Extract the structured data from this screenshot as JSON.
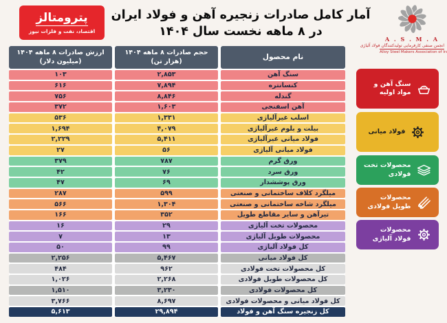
{
  "colors": {
    "page_bg": "#f7f3ef",
    "header_bg": "#4e5a6a",
    "table_backing": "#ffffff",
    "row_text": "#232a40",
    "grand_text": "#ffffff"
  },
  "row_colors": {
    "raw": "#ef8486",
    "mid": "#f6cf67",
    "flat": "#7ed0a2",
    "long": "#f2a46b",
    "alloy": "#bd9fd9",
    "total_dark": "#b6b7b6",
    "total_light": "#dbdbdb",
    "grand": "#223a5e"
  },
  "brand": {
    "name": "پترومتالز",
    "tagline": "اقتصاد، نفت و فلزات نیوز",
    "color": "#e5262b"
  },
  "title": {
    "line1": "آمار کامل صادرات زنجیره آهن و فولاد ایران",
    "line2": "در ۸ ماهه نخست سال ۱۴۰۴"
  },
  "asma": {
    "acronym": "A . S . M . A",
    "name_fa": "انجمن صنفی کارفرمایی تولیدکنندگان فولاد آلیاژی",
    "name_en": "Alloy Steel Makers Association of Iran",
    "flower_color": "#a3a3a3",
    "center_color": "#e02b27"
  },
  "table": {
    "headers": {
      "name": "نام محصول",
      "volume_line1": "حجم صادرات ۸ ماهه ۱۴۰۴",
      "volume_line2": "(هزار تن)",
      "value_line1": "ارزش صادرات ۸ ماهه ۱۴۰۴",
      "value_line2": "(میلیون دلار)"
    }
  },
  "categories": [
    {
      "label": "سنگ آهن و مواد اولیه",
      "color": "#cf2027",
      "text_color": "#ffffff",
      "icon": "ore-pile-icon",
      "row_span": 4
    },
    {
      "label": "فولاد میانی",
      "color": "#e9b529",
      "text_color": "#1d1d1d",
      "icon": "gear-icon",
      "row_span": 4
    },
    {
      "label": "محصولات تخت فولادی",
      "color": "#2ca15c",
      "text_color": "#ffffff",
      "icon": "sheets-stack-icon",
      "row_span": 3
    },
    {
      "label": "محصولات طویل فولادی",
      "color": "#d87027",
      "text_color": "#ffffff",
      "icon": "steel-rods-icon",
      "row_span": 3
    },
    {
      "label": "محصولات فولاد آلیاژی",
      "color": "#7c3fa0",
      "text_color": "#ffffff",
      "icon": "alloy-gear-icon",
      "row_span": 3
    }
  ],
  "chart_data": {
    "type": "table",
    "title": "آمار کامل صادرات زنجیره آهن و فولاد ایران در ۸ ماهه نخست سال ۱۴۰۴",
    "columns": [
      "نام محصول",
      "حجم صادرات ۸ ماهه ۱۴۰۴ (هزار تن)",
      "ارزش صادرات ۸ ماهه ۱۴۰۴ (میلیون دلار)"
    ],
    "rows": [
      {
        "name": "سنگ آهن",
        "volume": 2853,
        "volume_fa": "۲,۸۵۳",
        "value": 103,
        "value_fa": "۱۰۳",
        "group": "سنگ آهن و مواد اولیه",
        "style": "raw"
      },
      {
        "name": "کنسانتره",
        "volume": 7894,
        "volume_fa": "۷,۸۹۴",
        "value": 616,
        "value_fa": "۶۱۶",
        "group": "سنگ آهن و مواد اولیه",
        "style": "raw"
      },
      {
        "name": "گندله",
        "volume": 8846,
        "volume_fa": "۸,۸۴۶",
        "value": 756,
        "value_fa": "۷۵۶",
        "group": "سنگ آهن و مواد اولیه",
        "style": "raw"
      },
      {
        "name": "آهن اسفنجی",
        "volume": 1603,
        "volume_fa": "۱,۶۰۳",
        "value": 372,
        "value_fa": "۳۷۲",
        "group": "سنگ آهن و مواد اولیه",
        "style": "raw"
      },
      {
        "name": "اسلب غیرآلیاژی",
        "volume": 1331,
        "volume_fa": "۱,۳۳۱",
        "value": 536,
        "value_fa": "۵۳۶",
        "group": "فولاد میانی",
        "style": "mid"
      },
      {
        "name": "بیلت و بلوم غیرآلیاژی",
        "volume": 4079,
        "volume_fa": "۴,۰۷۹",
        "value": 1694,
        "value_fa": "۱,۶۹۴",
        "group": "فولاد میانی",
        "style": "mid"
      },
      {
        "name": "فولاد میانی غیرآلیاژی",
        "volume": 5411,
        "volume_fa": "۵,۴۱۱",
        "value": 2229,
        "value_fa": "۲,۲۲۹",
        "group": "فولاد میانی",
        "style": "mid"
      },
      {
        "name": "فولاد میانی آلیاژی",
        "volume": 56,
        "volume_fa": "۵۶",
        "value": 27,
        "value_fa": "۲۷",
        "group": "فولاد میانی",
        "style": "mid"
      },
      {
        "name": "ورق گرم",
        "volume": 787,
        "volume_fa": "۷۸۷",
        "value": 379,
        "value_fa": "۳۷۹",
        "group": "محصولات تخت فولادی",
        "style": "flat"
      },
      {
        "name": "ورق سرد",
        "volume": 76,
        "volume_fa": "۷۶",
        "value": 42,
        "value_fa": "۴۲",
        "group": "محصولات تخت فولادی",
        "style": "flat"
      },
      {
        "name": "ورق پوششدار",
        "volume": 69,
        "volume_fa": "۶۹",
        "value": 47,
        "value_fa": "۴۷",
        "group": "محصولات تخت فولادی",
        "style": "flat"
      },
      {
        "name": "میلگرد کلاف ساختمانی و صنعتی",
        "volume": 599,
        "volume_fa": "۵۹۹",
        "value": 287,
        "value_fa": "۲۸۷",
        "group": "محصولات طویل فولادی",
        "style": "long"
      },
      {
        "name": "میلگرد شاخه ساختمانی و صنعتی",
        "volume": 1304,
        "volume_fa": "۱,۳۰۴",
        "value": 566,
        "value_fa": "۵۶۶",
        "group": "محصولات طویل فولادی",
        "style": "long"
      },
      {
        "name": "تیرآهن و سایر مقاطع طویل",
        "volume": 352,
        "volume_fa": "۳۵۲",
        "value": 166,
        "value_fa": "۱۶۶",
        "group": "محصولات طویل فولادی",
        "style": "long"
      },
      {
        "name": "محصولات تخت آلیاژی",
        "volume": 29,
        "volume_fa": "۲۹",
        "value": 16,
        "value_fa": "۱۶",
        "group": "محصولات فولاد آلیاژی",
        "style": "alloy"
      },
      {
        "name": "محصولات طویل آلیاژی",
        "volume": 13,
        "volume_fa": "۱۳",
        "value": 7,
        "value_fa": "۷",
        "group": "محصولات فولاد آلیاژی",
        "style": "alloy"
      },
      {
        "name": "کل فولاد آلیاژی",
        "volume": 99,
        "volume_fa": "۹۹",
        "value": 50,
        "value_fa": "۵۰",
        "group": "محصولات فولاد آلیاژی",
        "style": "alloy"
      },
      {
        "name": "کل فولاد میانی",
        "volume": 5467,
        "volume_fa": "۵,۴۶۷",
        "value": 2256,
        "value_fa": "۲,۲۵۶",
        "group": "totals",
        "style": "total_dark"
      },
      {
        "name": "کل محصولات تخت فولادی",
        "volume": 962,
        "volume_fa": "۹۶۲",
        "value": 484,
        "value_fa": "۴۸۴",
        "group": "totals",
        "style": "total_light"
      },
      {
        "name": "کل محصولات طویل فولادی",
        "volume": 2268,
        "volume_fa": "۲,۲۶۸",
        "value": 1026,
        "value_fa": "۱,۰۲۶",
        "group": "totals",
        "style": "total_light"
      },
      {
        "name": "کل محصولات فولادی",
        "volume": 3230,
        "volume_fa": "۳,۲۳۰",
        "value": 1510,
        "value_fa": "۱,۵۱۰",
        "group": "totals",
        "style": "total_dark"
      },
      {
        "name": "کل فولاد میانی و محصولات فولادی",
        "volume": 8697,
        "volume_fa": "۸,۶۹۷",
        "value": 3766,
        "value_fa": "۳,۷۶۶",
        "group": "totals",
        "style": "total_light"
      },
      {
        "name": "کل زنجیره سنگ آهن و فولاد",
        "volume": 29894,
        "volume_fa": "۲۹,۸۹۴",
        "value": 5613,
        "value_fa": "۵,۶۱۳",
        "group": "grand-total",
        "style": "grand"
      }
    ]
  }
}
